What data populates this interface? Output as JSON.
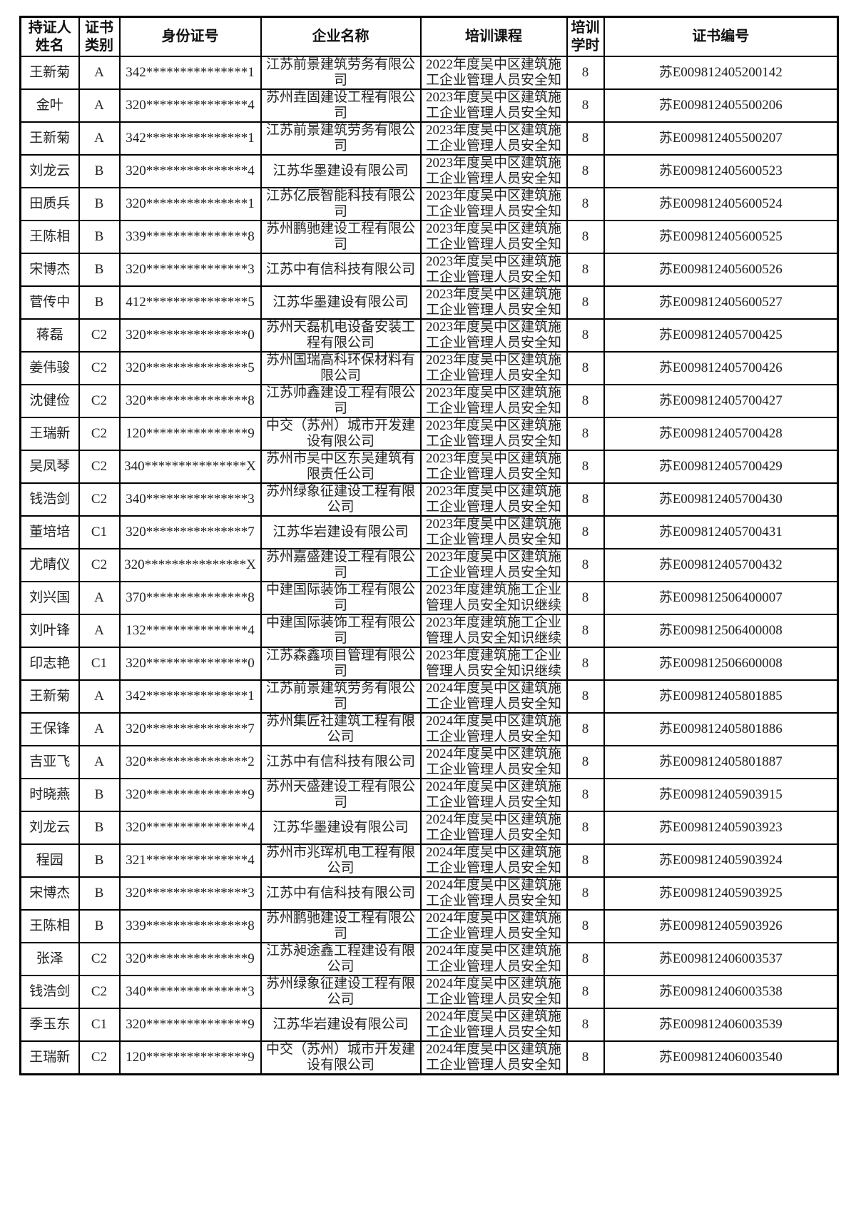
{
  "table": {
    "headers": [
      {
        "key": "name",
        "label": "持证人姓名"
      },
      {
        "key": "category",
        "label": "证书类别"
      },
      {
        "key": "id_number",
        "label": "身份证号"
      },
      {
        "key": "company",
        "label": "企业名称"
      },
      {
        "key": "course",
        "label": "培训课程"
      },
      {
        "key": "hours",
        "label": "培训学时"
      },
      {
        "key": "cert_no",
        "label": "证书编号"
      }
    ],
    "rows": [
      {
        "name": "王新菊",
        "category": "A",
        "id_number": "342***************1",
        "company": "江苏前景建筑劳务有限公司",
        "course": "2022年度吴中区建筑施工企业管理人员安全知",
        "hours": "8",
        "cert_no": "苏E009812405200142"
      },
      {
        "name": "金叶",
        "category": "A",
        "id_number": "320***************4",
        "company": "苏州垚固建设工程有限公司",
        "course": "2023年度吴中区建筑施工企业管理人员安全知",
        "hours": "8",
        "cert_no": "苏E009812405500206"
      },
      {
        "name": "王新菊",
        "category": "A",
        "id_number": "342***************1",
        "company": "江苏前景建筑劳务有限公司",
        "course": "2023年度吴中区建筑施工企业管理人员安全知",
        "hours": "8",
        "cert_no": "苏E009812405500207"
      },
      {
        "name": "刘龙云",
        "category": "B",
        "id_number": "320***************4",
        "company": "江苏华墨建设有限公司",
        "course": "2023年度吴中区建筑施工企业管理人员安全知",
        "hours": "8",
        "cert_no": "苏E009812405600523"
      },
      {
        "name": "田质兵",
        "category": "B",
        "id_number": "320***************1",
        "company": "江苏亿辰智能科技有限公司",
        "course": "2023年度吴中区建筑施工企业管理人员安全知",
        "hours": "8",
        "cert_no": "苏E009812405600524"
      },
      {
        "name": "王陈相",
        "category": "B",
        "id_number": "339***************8",
        "company": "苏州鹏驰建设工程有限公司",
        "course": "2023年度吴中区建筑施工企业管理人员安全知",
        "hours": "8",
        "cert_no": "苏E009812405600525"
      },
      {
        "name": "宋博杰",
        "category": "B",
        "id_number": "320***************3",
        "company": "江苏中有信科技有限公司",
        "course": "2023年度吴中区建筑施工企业管理人员安全知",
        "hours": "8",
        "cert_no": "苏E009812405600526"
      },
      {
        "name": "菅传中",
        "category": "B",
        "id_number": "412***************5",
        "company": "江苏华墨建设有限公司",
        "course": "2023年度吴中区建筑施工企业管理人员安全知",
        "hours": "8",
        "cert_no": "苏E009812405600527"
      },
      {
        "name": "蒋磊",
        "category": "C2",
        "id_number": "320***************0",
        "company": "苏州天磊机电设备安装工程有限公司",
        "course": "2023年度吴中区建筑施工企业管理人员安全知",
        "hours": "8",
        "cert_no": "苏E009812405700425"
      },
      {
        "name": "姜伟骏",
        "category": "C2",
        "id_number": "320***************5",
        "company": "苏州国瑞高科环保材料有限公司",
        "course": "2023年度吴中区建筑施工企业管理人员安全知",
        "hours": "8",
        "cert_no": "苏E009812405700426"
      },
      {
        "name": "沈健俭",
        "category": "C2",
        "id_number": "320***************8",
        "company": "江苏帅鑫建设工程有限公司",
        "course": "2023年度吴中区建筑施工企业管理人员安全知",
        "hours": "8",
        "cert_no": "苏E009812405700427"
      },
      {
        "name": "王瑞新",
        "category": "C2",
        "id_number": "120***************9",
        "company": "中交（苏州）城市开发建设有限公司",
        "course": "2023年度吴中区建筑施工企业管理人员安全知",
        "hours": "8",
        "cert_no": "苏E009812405700428"
      },
      {
        "name": "吴凤琴",
        "category": "C2",
        "id_number": "340***************X",
        "company": "苏州市吴中区东吴建筑有限责任公司",
        "course": "2023年度吴中区建筑施工企业管理人员安全知",
        "hours": "8",
        "cert_no": "苏E009812405700429"
      },
      {
        "name": "钱浩剑",
        "category": "C2",
        "id_number": "340***************3",
        "company": "苏州绿象征建设工程有限公司",
        "course": "2023年度吴中区建筑施工企业管理人员安全知",
        "hours": "8",
        "cert_no": "苏E009812405700430"
      },
      {
        "name": "董培培",
        "category": "C1",
        "id_number": "320***************7",
        "company": "江苏华岩建设有限公司",
        "course": "2023年度吴中区建筑施工企业管理人员安全知",
        "hours": "8",
        "cert_no": "苏E009812405700431"
      },
      {
        "name": "尤晴仪",
        "category": "C2",
        "id_number": "320***************X",
        "company": "苏州嘉盛建设工程有限公司",
        "course": "2023年度吴中区建筑施工企业管理人员安全知",
        "hours": "8",
        "cert_no": "苏E009812405700432"
      },
      {
        "name": "刘兴国",
        "category": "A",
        "id_number": "370***************8",
        "company": "中建国际装饰工程有限公司",
        "course": "2023年度建筑施工企业管理人员安全知识继续",
        "hours": "8",
        "cert_no": "苏E009812506400007"
      },
      {
        "name": "刘叶锋",
        "category": "A",
        "id_number": "132***************4",
        "company": "中建国际装饰工程有限公司",
        "course": "2023年度建筑施工企业管理人员安全知识继续",
        "hours": "8",
        "cert_no": "苏E009812506400008"
      },
      {
        "name": "印志艳",
        "category": "C1",
        "id_number": "320***************0",
        "company": "江苏森鑫项目管理有限公司",
        "course": "2023年度建筑施工企业管理人员安全知识继续",
        "hours": "8",
        "cert_no": "苏E009812506600008"
      },
      {
        "name": "王新菊",
        "category": "A",
        "id_number": "342***************1",
        "company": "江苏前景建筑劳务有限公司",
        "course": "2024年度吴中区建筑施工企业管理人员安全知",
        "hours": "8",
        "cert_no": "苏E009812405801885"
      },
      {
        "name": "王保锋",
        "category": "A",
        "id_number": "320***************7",
        "company": "苏州集匠社建筑工程有限公司",
        "course": "2024年度吴中区建筑施工企业管理人员安全知",
        "hours": "8",
        "cert_no": "苏E009812405801886"
      },
      {
        "name": "吉亚飞",
        "category": "A",
        "id_number": "320***************2",
        "company": "江苏中有信科技有限公司",
        "course": "2024年度吴中区建筑施工企业管理人员安全知",
        "hours": "8",
        "cert_no": "苏E009812405801887"
      },
      {
        "name": "时晓燕",
        "category": "B",
        "id_number": "320***************9",
        "company": "苏州天盛建设工程有限公司",
        "course": "2024年度吴中区建筑施工企业管理人员安全知",
        "hours": "8",
        "cert_no": "苏E009812405903915"
      },
      {
        "name": "刘龙云",
        "category": "B",
        "id_number": "320***************4",
        "company": "江苏华墨建设有限公司",
        "course": "2024年度吴中区建筑施工企业管理人员安全知",
        "hours": "8",
        "cert_no": "苏E009812405903923"
      },
      {
        "name": "程园",
        "category": "B",
        "id_number": "321***************4",
        "company": "苏州市兆珲机电工程有限公司",
        "course": "2024年度吴中区建筑施工企业管理人员安全知",
        "hours": "8",
        "cert_no": "苏E009812405903924"
      },
      {
        "name": "宋博杰",
        "category": "B",
        "id_number": "320***************3",
        "company": "江苏中有信科技有限公司",
        "course": "2024年度吴中区建筑施工企业管理人员安全知",
        "hours": "8",
        "cert_no": "苏E009812405903925"
      },
      {
        "name": "王陈相",
        "category": "B",
        "id_number": "339***************8",
        "company": "苏州鹏驰建设工程有限公司",
        "course": "2024年度吴中区建筑施工企业管理人员安全知",
        "hours": "8",
        "cert_no": "苏E009812405903926"
      },
      {
        "name": "张泽",
        "category": "C2",
        "id_number": "320***************9",
        "company": "江苏昶途鑫工程建设有限公司",
        "course": "2024年度吴中区建筑施工企业管理人员安全知",
        "hours": "8",
        "cert_no": "苏E009812406003537"
      },
      {
        "name": "钱浩剑",
        "category": "C2",
        "id_number": "340***************3",
        "company": "苏州绿象征建设工程有限公司",
        "course": "2024年度吴中区建筑施工企业管理人员安全知",
        "hours": "8",
        "cert_no": "苏E009812406003538"
      },
      {
        "name": "季玉东",
        "category": "C1",
        "id_number": "320***************9",
        "company": "江苏华岩建设有限公司",
        "course": "2024年度吴中区建筑施工企业管理人员安全知",
        "hours": "8",
        "cert_no": "苏E009812406003539"
      },
      {
        "name": "王瑞新",
        "category": "C2",
        "id_number": "120***************9",
        "company": "中交（苏州）城市开发建设有限公司",
        "course": "2024年度吴中区建筑施工企业管理人员安全知",
        "hours": "8",
        "cert_no": "苏E009812406003540"
      }
    ]
  }
}
